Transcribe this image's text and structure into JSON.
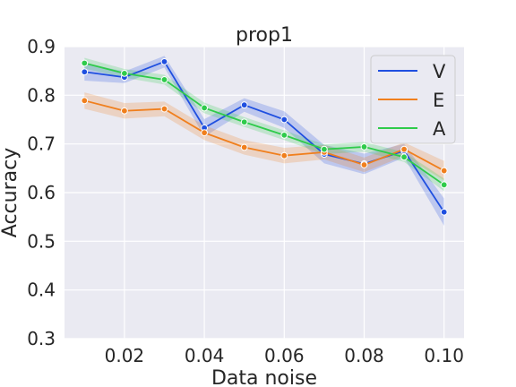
{
  "chart_data": {
    "type": "line",
    "title": "prop1",
    "xlabel": "Data noise",
    "ylabel": "Accuracy",
    "xlim": [
      0.005,
      0.105
    ],
    "ylim": [
      0.3,
      0.9
    ],
    "xticks": [
      0.02,
      0.04,
      0.06,
      0.08,
      0.1
    ],
    "xtick_labels": [
      "0.02",
      "0.04",
      "0.06",
      "0.08",
      "0.10"
    ],
    "yticks": [
      0.3,
      0.4,
      0.5,
      0.6,
      0.7,
      0.8,
      0.9
    ],
    "ytick_labels": [
      "0.3",
      "0.4",
      "0.5",
      "0.6",
      "0.7",
      "0.8",
      "0.9"
    ],
    "grid": true,
    "legend_position": "top-right",
    "x": [
      0.01,
      0.02,
      0.03,
      0.04,
      0.05,
      0.06,
      0.07,
      0.08,
      0.09,
      0.1
    ],
    "series": [
      {
        "name": "V",
        "color": "#1f4fe0",
        "values": [
          0.848,
          0.837,
          0.869,
          0.733,
          0.78,
          0.75,
          0.679,
          0.659,
          0.686,
          0.56
        ],
        "lower": [
          0.83,
          0.825,
          0.857,
          0.715,
          0.766,
          0.733,
          0.66,
          0.638,
          0.672,
          0.532
        ],
        "upper": [
          0.866,
          0.849,
          0.881,
          0.751,
          0.794,
          0.767,
          0.698,
          0.68,
          0.7,
          0.588
        ]
      },
      {
        "name": "E",
        "color": "#f07f1d",
        "values": [
          0.789,
          0.768,
          0.772,
          0.723,
          0.693,
          0.676,
          0.683,
          0.657,
          0.689,
          0.645
        ],
        "lower": [
          0.772,
          0.752,
          0.757,
          0.708,
          0.678,
          0.66,
          0.668,
          0.642,
          0.675,
          0.625
        ],
        "upper": [
          0.806,
          0.784,
          0.787,
          0.738,
          0.708,
          0.692,
          0.698,
          0.672,
          0.703,
          0.665
        ]
      },
      {
        "name": "A",
        "color": "#2fcb4b",
        "values": [
          0.866,
          0.845,
          0.832,
          0.774,
          0.745,
          0.718,
          0.689,
          0.694,
          0.673,
          0.616
        ],
        "lower": [
          0.855,
          0.836,
          0.822,
          0.763,
          0.735,
          0.708,
          0.679,
          0.684,
          0.663,
          0.603
        ],
        "upper": [
          0.877,
          0.854,
          0.842,
          0.785,
          0.755,
          0.728,
          0.699,
          0.704,
          0.683,
          0.629
        ]
      }
    ]
  }
}
